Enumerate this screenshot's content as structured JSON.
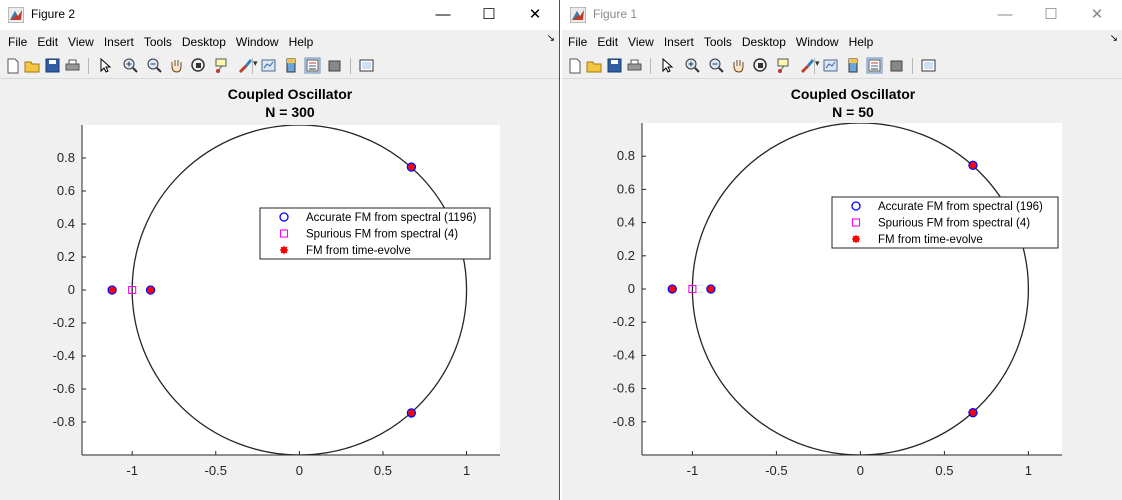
{
  "windows": [
    {
      "id": "left",
      "title": "Figure 2",
      "active": true,
      "menu": [
        "File",
        "Edit",
        "View",
        "Insert",
        "Tools",
        "Desktop",
        "Window",
        "Help"
      ],
      "plot": {
        "title": "Coupled Oscillator",
        "subtitle": "N = 300",
        "legend": [
          {
            "label": "Accurate FM from spectral (1196)",
            "marker": "circle",
            "color": "#0000ff"
          },
          {
            "label": "Spurious FM from spectral (4)",
            "marker": "square",
            "color": "#ff00ff"
          },
          {
            "label": "FM from time-evolve",
            "marker": "asterisk",
            "color": "#ff0000"
          }
        ],
        "xticks": [
          "-1",
          "-0.5",
          "0",
          "0.5",
          "1"
        ],
        "yticks": [
          "0.8",
          "0.6",
          "0.4",
          "0.2",
          "0",
          "-0.2",
          "-0.4",
          "-0.6",
          "-0.8"
        ]
      }
    },
    {
      "id": "right",
      "title": "Figure 1",
      "active": false,
      "menu": [
        "File",
        "Edit",
        "View",
        "Insert",
        "Tools",
        "Desktop",
        "Window",
        "Help"
      ],
      "plot": {
        "title": "Coupled Oscillator",
        "subtitle": "N = 50",
        "legend": [
          {
            "label": "Accurate FM from spectral (196)",
            "marker": "circle",
            "color": "#0000ff"
          },
          {
            "label": "Spurious FM from spectral (4)",
            "marker": "square",
            "color": "#ff00ff"
          },
          {
            "label": "FM from time-evolve",
            "marker": "asterisk",
            "color": "#ff0000"
          }
        ],
        "xticks": [
          "-1",
          "-0.5",
          "0",
          "0.5",
          "1"
        ],
        "yticks": [
          "0.8",
          "0.6",
          "0.4",
          "0.2",
          "0",
          "-0.2",
          "-0.4",
          "-0.6",
          "-0.8"
        ]
      }
    }
  ],
  "toolbar_icons": [
    "new-figure-icon",
    "open-file-icon",
    "save-icon",
    "print-icon",
    "pointer-icon",
    "zoom-in-icon",
    "zoom-out-icon",
    "pan-icon",
    "rotate-3d-icon",
    "data-cursor-icon",
    "brush-icon",
    "link-plot-icon",
    "colorbar-icon",
    "legend-icon",
    "hide-plot-tools-icon",
    "show-plot-tools-icon"
  ],
  "chart_data": [
    {
      "type": "scatter",
      "title": "Coupled Oscillator",
      "subtitle": "N = 300",
      "xlim": [
        -1.3,
        1.2
      ],
      "ylim": [
        -1,
        1
      ],
      "xticks": [
        -1,
        -0.5,
        0,
        0.5,
        1
      ],
      "yticks": [
        -0.8,
        -0.6,
        -0.4,
        -0.2,
        0,
        0.2,
        0.4,
        0.6,
        0.8
      ],
      "grid": false,
      "legend_position": "upper-right",
      "unit_circle": true,
      "series": [
        {
          "name": "Accurate FM from spectral (1196)",
          "marker": "circle",
          "color": "#0000ff",
          "points": [
            [
              -1.12,
              0
            ],
            [
              -0.89,
              0
            ],
            [
              0.67,
              0.745
            ],
            [
              0.67,
              -0.745
            ]
          ]
        },
        {
          "name": "Spurious FM from spectral (4)",
          "marker": "square",
          "color": "#ff00ff",
          "points": [
            [
              -1,
              0
            ]
          ]
        },
        {
          "name": "FM from time-evolve",
          "marker": "asterisk",
          "color": "#ff0000",
          "points": [
            [
              -1.12,
              0
            ],
            [
              -0.89,
              0
            ],
            [
              0.67,
              0.745
            ],
            [
              0.67,
              -0.745
            ]
          ]
        }
      ]
    },
    {
      "type": "scatter",
      "title": "Coupled Oscillator",
      "subtitle": "N = 50",
      "xlim": [
        -1.3,
        1.2
      ],
      "ylim": [
        -1,
        1
      ],
      "xticks": [
        -1,
        -0.5,
        0,
        0.5,
        1
      ],
      "yticks": [
        -0.8,
        -0.6,
        -0.4,
        -0.2,
        0,
        0.2,
        0.4,
        0.6,
        0.8
      ],
      "grid": false,
      "legend_position": "upper-right",
      "unit_circle": true,
      "series": [
        {
          "name": "Accurate FM from spectral (196)",
          "marker": "circle",
          "color": "#0000ff",
          "points": [
            [
              -1.12,
              0
            ],
            [
              -0.89,
              0
            ],
            [
              0.67,
              0.745
            ],
            [
              0.67,
              -0.745
            ]
          ]
        },
        {
          "name": "Spurious FM from spectral (4)",
          "marker": "square",
          "color": "#ff00ff",
          "points": [
            [
              -1,
              0
            ]
          ]
        },
        {
          "name": "FM from time-evolve",
          "marker": "asterisk",
          "color": "#ff0000",
          "points": [
            [
              -1.12,
              0
            ],
            [
              -0.89,
              0
            ],
            [
              0.67,
              0.745
            ],
            [
              0.67,
              -0.745
            ]
          ]
        }
      ]
    }
  ]
}
